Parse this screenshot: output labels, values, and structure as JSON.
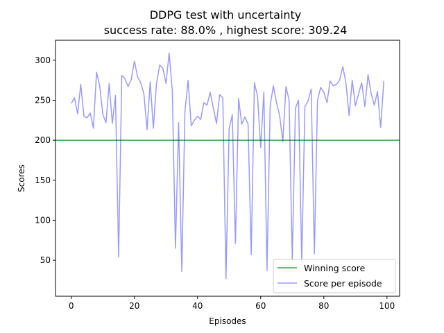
{
  "chart_data": {
    "type": "line",
    "title": "DDPG test with uncertainty",
    "subtitle": "success rate: 88.0% , highest score: 309.24",
    "xlabel": "Episodes",
    "ylabel": "Scores",
    "xlim": [
      -5,
      104
    ],
    "ylim": [
      5,
      325
    ],
    "xticks": [
      0,
      20,
      40,
      60,
      80,
      100
    ],
    "yticks": [
      50,
      100,
      150,
      200,
      250,
      300
    ],
    "hlines": [
      {
        "name": "Winning score",
        "y": 200,
        "color": "#008000"
      }
    ],
    "series": [
      {
        "name": "Score per episode",
        "color": "#0000ff",
        "x": [
          0,
          1,
          2,
          3,
          4,
          5,
          6,
          7,
          8,
          9,
          10,
          11,
          12,
          13,
          14,
          15,
          16,
          17,
          18,
          19,
          20,
          21,
          22,
          23,
          24,
          25,
          26,
          27,
          28,
          29,
          30,
          31,
          32,
          33,
          34,
          35,
          36,
          37,
          38,
          39,
          40,
          41,
          42,
          43,
          44,
          45,
          46,
          47,
          48,
          49,
          50,
          51,
          52,
          53,
          54,
          55,
          56,
          57,
          58,
          59,
          60,
          61,
          62,
          63,
          64,
          65,
          66,
          67,
          68,
          69,
          70,
          71,
          72,
          73,
          74,
          75,
          76,
          77,
          78,
          79,
          80,
          81,
          82,
          83,
          84,
          85,
          86,
          87,
          88,
          89,
          90,
          91,
          92,
          93,
          94,
          95,
          96,
          97,
          98,
          99
        ],
        "values": [
          246,
          253,
          233,
          270,
          230,
          228,
          234,
          215,
          285,
          268,
          232,
          222,
          271,
          221,
          256,
          54,
          281,
          277,
          267,
          276,
          299,
          279,
          272,
          258,
          213,
          273,
          215,
          271,
          294,
          290,
          271,
          309,
          262,
          65,
          222,
          36,
          236,
          275,
          218,
          225,
          230,
          226,
          247,
          244,
          260,
          240,
          221,
          257,
          253,
          27,
          214,
          232,
          71,
          252,
          220,
          229,
          220,
          57,
          272,
          255,
          191,
          260,
          37,
          243,
          268,
          247,
          231,
          198,
          267,
          250,
          51,
          240,
          250,
          48,
          242,
          249,
          264,
          58,
          250,
          266,
          260,
          247,
          274,
          268,
          270,
          275,
          292,
          272,
          231,
          275,
          243,
          258,
          272,
          242,
          282,
          258,
          244,
          261,
          216,
          274
        ]
      }
    ],
    "legend": {
      "position": "lower-right",
      "entries": [
        "Winning score",
        "Score per episode"
      ]
    },
    "grid": false
  }
}
